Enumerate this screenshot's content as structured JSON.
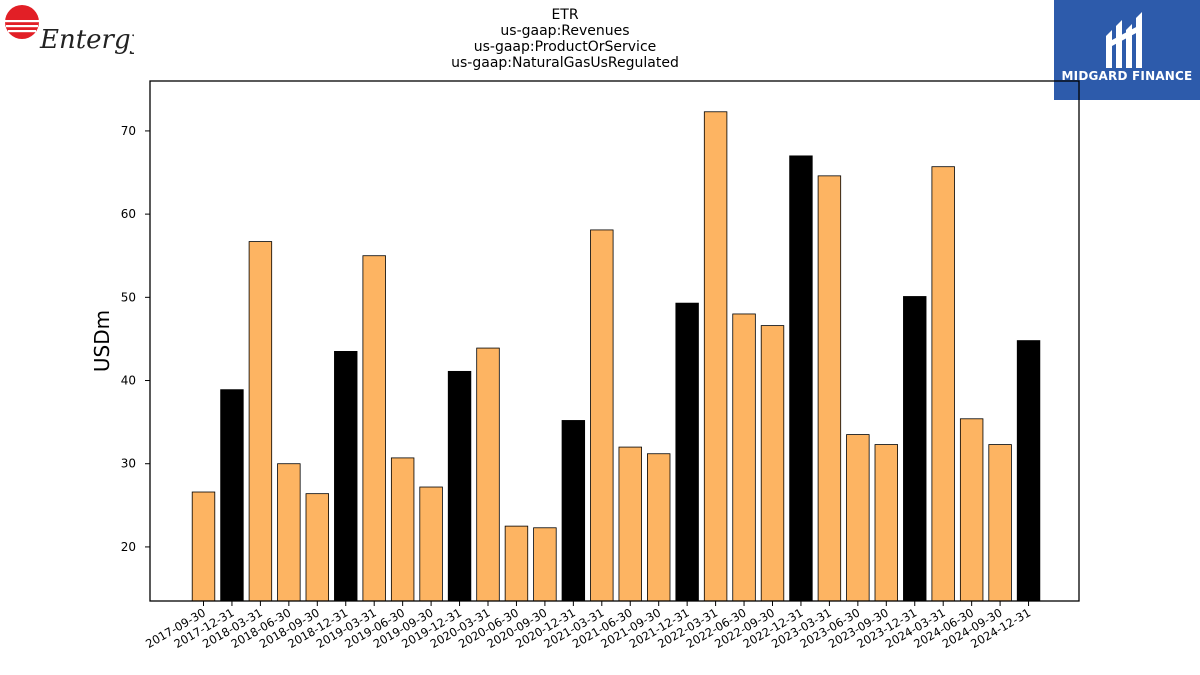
{
  "header": {
    "title_lines": [
      "ETR",
      "us-gaap:Revenues",
      "us-gaap:ProductOrService",
      "us-gaap:NaturalGasUsRegulated"
    ]
  },
  "logos": {
    "left": {
      "name": "entergy-logo",
      "text": "Entergy"
    },
    "right": {
      "name": "midgard-finance-logo",
      "text": "MIDGARD FINANCE"
    }
  },
  "colors": {
    "quarter_bar": "#fdb462",
    "annual_bar": "#000000"
  },
  "chart_data": {
    "type": "bar",
    "title": "ETR us-gaap:Revenues us-gaap:ProductOrService us-gaap:NaturalGasUsRegulated",
    "xlabel": "",
    "ylabel": "USDm",
    "ylim": [
      13.5,
      76
    ],
    "yticks": [
      20,
      30,
      40,
      50,
      60,
      70
    ],
    "grid": false,
    "categories": [
      "2017-09-30",
      "2017-12-31",
      "2018-03-31",
      "2018-06-30",
      "2018-09-30",
      "2018-12-31",
      "2019-03-31",
      "2019-06-30",
      "2019-09-30",
      "2019-12-31",
      "2020-03-31",
      "2020-06-30",
      "2020-09-30",
      "2020-12-31",
      "2021-03-31",
      "2021-06-30",
      "2021-09-30",
      "2021-12-31",
      "2022-03-31",
      "2022-06-30",
      "2022-09-30",
      "2022-12-31",
      "2023-03-31",
      "2023-06-30",
      "2023-09-30",
      "2023-12-31",
      "2024-03-31",
      "2024-06-30",
      "2024-09-30",
      "2024-12-31"
    ],
    "values": [
      26.6,
      38.9,
      56.7,
      30.0,
      26.4,
      43.5,
      55.0,
      30.7,
      27.2,
      41.1,
      43.9,
      22.5,
      22.3,
      35.2,
      58.1,
      32.0,
      31.2,
      49.3,
      72.3,
      48.0,
      46.6,
      67.0,
      64.6,
      33.5,
      32.3,
      50.1,
      65.7,
      35.4,
      32.3,
      44.8
    ],
    "bar_colors": [
      "#fdb462",
      "#000000",
      "#fdb462",
      "#fdb462",
      "#fdb462",
      "#000000",
      "#fdb462",
      "#fdb462",
      "#fdb462",
      "#000000",
      "#fdb462",
      "#fdb462",
      "#fdb462",
      "#000000",
      "#fdb462",
      "#fdb462",
      "#fdb462",
      "#000000",
      "#fdb462",
      "#fdb462",
      "#fdb462",
      "#000000",
      "#fdb462",
      "#fdb462",
      "#fdb462",
      "#000000",
      "#fdb462",
      "#fdb462",
      "#fdb462",
      "#000000"
    ]
  }
}
